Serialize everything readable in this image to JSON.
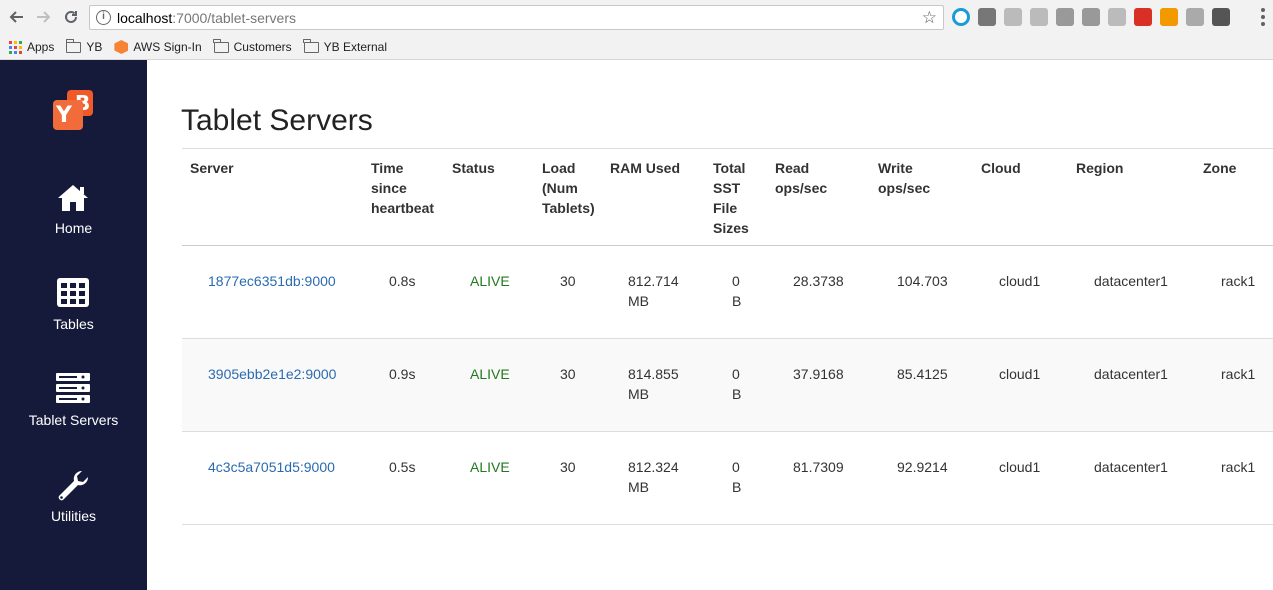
{
  "browser": {
    "url_host": "localhost",
    "url_path": ":7000/tablet-servers",
    "bookmarks": [
      "Apps",
      "YB",
      "AWS Sign-In",
      "Customers",
      "YB External"
    ],
    "extension_colors": [
      "#1a9ad6",
      "#777777",
      "#bbbbbb",
      "#bbbbbb",
      "#999999",
      "#999999",
      "#bbbbbb",
      "#d93025",
      "#f29900",
      "#aaaaaa",
      "#555555"
    ]
  },
  "sidebar": {
    "items": [
      {
        "label": "Home",
        "icon": "home-icon"
      },
      {
        "label": "Tables",
        "icon": "table-icon"
      },
      {
        "label": "Tablet Servers",
        "icon": "server-stack-icon"
      },
      {
        "label": "Utilities",
        "icon": "wrench-icon"
      }
    ]
  },
  "page": {
    "title": "Tablet Servers"
  },
  "table": {
    "headers": [
      [
        "Server"
      ],
      [
        "Time",
        "since",
        "heartbeat"
      ],
      [
        "Status"
      ],
      [
        "Load",
        "(Num",
        "Tablets)"
      ],
      [
        "RAM Used"
      ],
      [
        "Total",
        "SST",
        "File",
        "Sizes"
      ],
      [
        "Read",
        "ops/sec"
      ],
      [
        "Write",
        "ops/sec"
      ],
      [
        "Cloud"
      ],
      [
        "Region"
      ],
      [
        "Zone"
      ]
    ],
    "rows": [
      {
        "server": "1877ec6351db:9000",
        "heartbeat": "0.8s",
        "status": "ALIVE",
        "load": "30",
        "ram": [
          "812.714",
          "MB"
        ],
        "sst": [
          "0",
          "B"
        ],
        "read": "28.3738",
        "write": "104.703",
        "cloud": "cloud1",
        "region": "datacenter1",
        "zone": "rack1"
      },
      {
        "server": "3905ebb2e1e2:9000",
        "heartbeat": "0.9s",
        "status": "ALIVE",
        "load": "30",
        "ram": [
          "814.855",
          "MB"
        ],
        "sst": [
          "0",
          "B"
        ],
        "read": "37.9168",
        "write": "85.4125",
        "cloud": "cloud1",
        "region": "datacenter1",
        "zone": "rack1"
      },
      {
        "server": "4c3c5a7051d5:9000",
        "heartbeat": "0.5s",
        "status": "ALIVE",
        "load": "30",
        "ram": [
          "812.324",
          "MB"
        ],
        "sst": [
          "0",
          "B"
        ],
        "read": "81.7309",
        "write": "92.9214",
        "cloud": "cloud1",
        "region": "datacenter1",
        "zone": "rack1"
      }
    ]
  },
  "colors": {
    "sidebar_bg": "#151a3a",
    "link": "#2a6bb0",
    "alive": "#1f7a1f",
    "brand": "#f05a28"
  }
}
